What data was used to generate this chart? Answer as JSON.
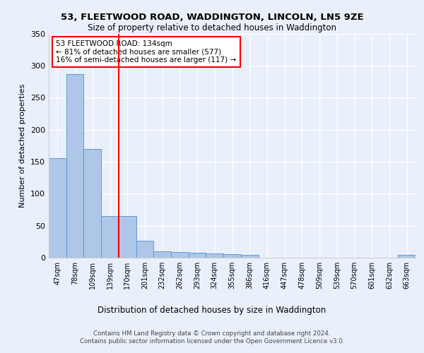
{
  "title1": "53, FLEETWOOD ROAD, WADDINGTON, LINCOLN, LN5 9ZE",
  "title2": "Size of property relative to detached houses in Waddington",
  "xlabel": "Distribution of detached houses by size in Waddington",
  "ylabel": "Number of detached properties",
  "categories": [
    "47sqm",
    "78sqm",
    "109sqm",
    "139sqm",
    "170sqm",
    "201sqm",
    "232sqm",
    "262sqm",
    "293sqm",
    "324sqm",
    "355sqm",
    "386sqm",
    "416sqm",
    "447sqm",
    "478sqm",
    "509sqm",
    "539sqm",
    "570sqm",
    "601sqm",
    "632sqm",
    "663sqm"
  ],
  "values": [
    155,
    287,
    170,
    65,
    65,
    27,
    10,
    9,
    8,
    7,
    5,
    4,
    0,
    0,
    0,
    0,
    0,
    0,
    0,
    0,
    4
  ],
  "bar_color": "#aec6e8",
  "bar_edge_color": "#5b9bd5",
  "red_line_x": 3.5,
  "annotation_text": "53 FLEETWOOD ROAD: 134sqm\n← 81% of detached houses are smaller (577)\n16% of semi-detached houses are larger (117) →",
  "annotation_box_color": "white",
  "annotation_box_edge_color": "red",
  "red_line_color": "red",
  "ylim": [
    0,
    350
  ],
  "yticks": [
    0,
    50,
    100,
    150,
    200,
    250,
    300,
    350
  ],
  "footer": "Contains HM Land Registry data © Crown copyright and database right 2024.\nContains public sector information licensed under the Open Government Licence v3.0.",
  "bg_color": "#eaf0fb",
  "plot_bg_color": "#eaf0fb",
  "grid_color": "white"
}
